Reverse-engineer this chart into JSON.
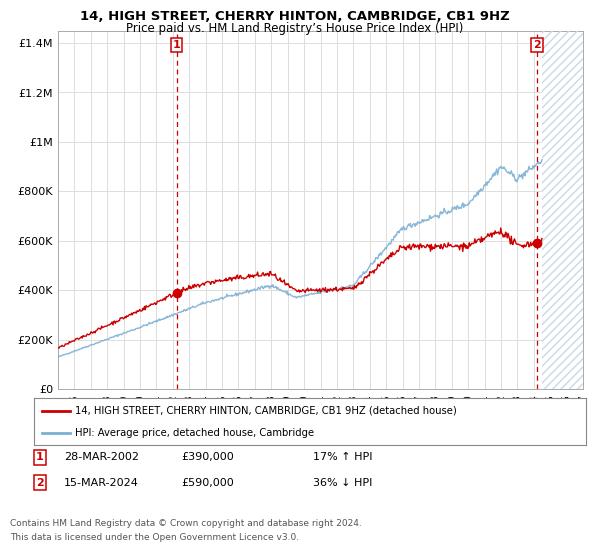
{
  "title": "14, HIGH STREET, CHERRY HINTON, CAMBRIDGE, CB1 9HZ",
  "subtitle": "Price paid vs. HM Land Registry’s House Price Index (HPI)",
  "xlim": [
    1995,
    2027
  ],
  "ylim": [
    0,
    1450000
  ],
  "yticks": [
    0,
    200000,
    400000,
    600000,
    800000,
    1000000,
    1200000,
    1400000
  ],
  "ytick_labels": [
    "£0",
    "£200K",
    "£400K",
    "£600K",
    "£800K",
    "£1M",
    "£1.2M",
    "£1.4M"
  ],
  "xticks": [
    1995,
    1996,
    1997,
    1998,
    1999,
    2000,
    2001,
    2002,
    2003,
    2004,
    2005,
    2006,
    2007,
    2008,
    2009,
    2010,
    2011,
    2012,
    2013,
    2014,
    2015,
    2016,
    2017,
    2018,
    2019,
    2020,
    2021,
    2022,
    2023,
    2024,
    2025,
    2026,
    2027
  ],
  "sale1_date": 2002.23,
  "sale1_price": 390000,
  "sale1_label": "1",
  "sale1_hpi_pct": "17% ↑ HPI",
  "sale1_date_str": "28-MAR-2002",
  "sale2_date": 2024.21,
  "sale2_price": 590000,
  "sale2_label": "2",
  "sale2_hpi_pct": "36% ↓ HPI",
  "sale2_date_str": "15-MAR-2024",
  "red_line_color": "#cc0000",
  "blue_line_color": "#7bafd4",
  "background_color": "#ffffff",
  "grid_color": "#dddddd",
  "legend_label_red": "14, HIGH STREET, CHERRY HINTON, CAMBRIDGE, CB1 9HZ (detached house)",
  "legend_label_blue": "HPI: Average price, detached house, Cambridge",
  "footer1": "Contains HM Land Registry data © Crown copyright and database right 2024.",
  "footer2": "This data is licensed under the Open Government Licence v3.0.",
  "hatch_color": "#c8d8e8"
}
